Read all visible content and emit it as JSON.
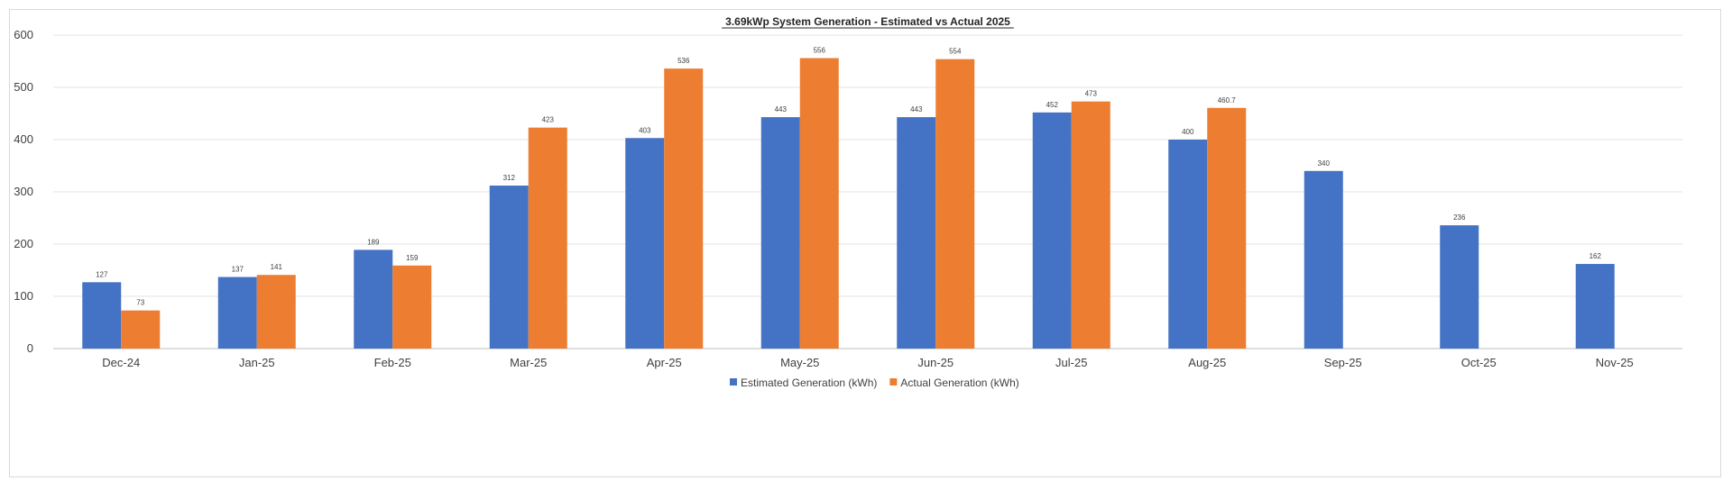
{
  "chart_data": {
    "type": "bar",
    "title": "3.69kWp System Generation - Estimated vs Actual 2025",
    "categories": [
      "Dec-24",
      "Jan-25",
      "Feb-25",
      "Mar-25",
      "Apr-25",
      "May-25",
      "Jun-25",
      "Jul-25",
      "Aug-25",
      "Sep-25",
      "Oct-25",
      "Nov-25"
    ],
    "series": [
      {
        "name": "Estimated Generation (kWh)",
        "color": "#4472C4",
        "values": [
          127,
          137,
          189,
          312,
          403,
          443,
          443,
          452,
          400,
          340,
          236,
          162
        ],
        "labels": [
          "127",
          "137",
          "189",
          "312",
          "403",
          "443",
          "443",
          "452",
          "400",
          "340",
          "236",
          "162"
        ]
      },
      {
        "name": "Actual Generation (kWh)",
        "color": "#ED7D31",
        "values": [
          73,
          141,
          159,
          423,
          536,
          556,
          554,
          473,
          460.7,
          null,
          null,
          null
        ],
        "labels": [
          "73",
          "141",
          "159",
          "423",
          "536",
          "556",
          "554",
          "473",
          "460.7",
          null,
          null,
          null
        ]
      }
    ],
    "ylim": [
      0,
      600
    ],
    "yticks": [
      "0",
      "100",
      "200",
      "300",
      "400",
      "500",
      "600"
    ],
    "ytick_values": [
      0,
      100,
      200,
      300,
      400,
      500,
      600
    ],
    "xlabel": "",
    "ylabel": "",
    "grid": true,
    "legend_position": "bottom"
  }
}
